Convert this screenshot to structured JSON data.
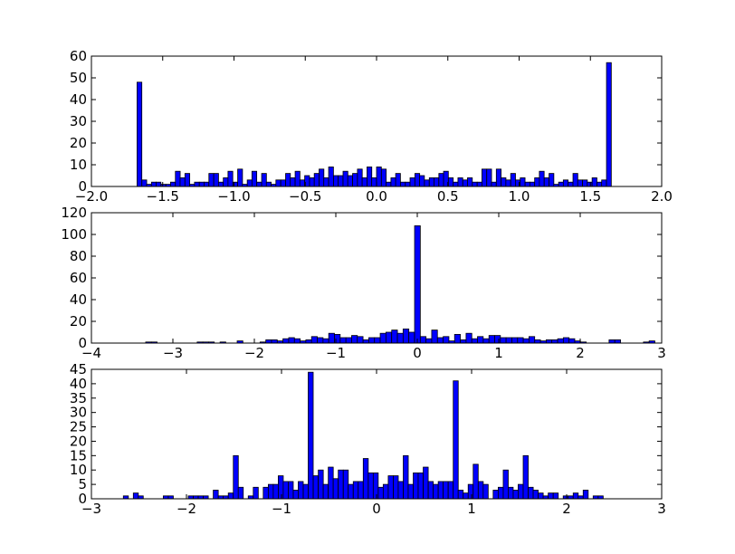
{
  "chart_data": [
    {
      "type": "bar",
      "title": "",
      "xlabel": "",
      "ylabel": "",
      "xlim": [
        -2.0,
        2.0
      ],
      "ylim": [
        0,
        60
      ],
      "grid": false,
      "bar_color": "#0000ff",
      "edge_color": "#000000",
      "bin_width": 0.0336,
      "xticks": [
        -2.0,
        -1.5,
        -1.0,
        -0.5,
        0.0,
        0.5,
        1.0,
        1.5,
        2.0
      ],
      "xtick_labels": [
        "−2.0",
        "−1.5",
        "−1.0",
        "−0.5",
        "0.0",
        "0.5",
        "1.0",
        "1.5",
        "2.0"
      ],
      "yticks": [
        0,
        10,
        20,
        30,
        40,
        50,
        60
      ],
      "ytick_labels": [
        "0",
        "10",
        "20",
        "30",
        "40",
        "50",
        "60"
      ],
      "x": [
        -1.68,
        -1.646,
        -1.613,
        -1.579,
        -1.546,
        -1.512,
        -1.478,
        -1.445,
        -1.411,
        -1.378,
        -1.344,
        -1.31,
        -1.277,
        -1.243,
        -1.21,
        -1.176,
        -1.142,
        -1.109,
        -1.075,
        -1.042,
        -1.008,
        -0.974,
        -0.941,
        -0.907,
        -0.874,
        -0.84,
        -0.806,
        -0.773,
        -0.739,
        -0.706,
        -0.672,
        -0.638,
        -0.605,
        -0.571,
        -0.538,
        -0.504,
        -0.47,
        -0.437,
        -0.403,
        -0.37,
        -0.336,
        -0.302,
        -0.269,
        -0.235,
        -0.202,
        -0.168,
        -0.134,
        -0.101,
        -0.067,
        -0.034,
        0.0,
        0.034,
        0.067,
        0.101,
        0.134,
        0.168,
        0.202,
        0.235,
        0.269,
        0.302,
        0.336,
        0.37,
        0.403,
        0.437,
        0.47,
        0.504,
        0.538,
        0.571,
        0.605,
        0.638,
        0.672,
        0.706,
        0.739,
        0.773,
        0.806,
        0.84,
        0.874,
        0.907,
        0.941,
        0.974,
        1.008,
        1.042,
        1.075,
        1.109,
        1.142,
        1.176,
        1.21,
        1.243,
        1.277,
        1.31,
        1.344,
        1.378,
        1.411,
        1.445,
        1.478,
        1.512,
        1.546,
        1.579,
        1.613,
        1.646
      ],
      "values": [
        48,
        3,
        1,
        2,
        2,
        1,
        1,
        2,
        7,
        4,
        6,
        1,
        2,
        2,
        2,
        6,
        6,
        2,
        4,
        7,
        2,
        8,
        1,
        3,
        7,
        2,
        6,
        2,
        1,
        3,
        3,
        6,
        4,
        7,
        3,
        5,
        4,
        6,
        8,
        4,
        9,
        5,
        5,
        7,
        5,
        6,
        8,
        4,
        9,
        4,
        9,
        8,
        2,
        4,
        6,
        2,
        2,
        4,
        6,
        5,
        3,
        4,
        4,
        6,
        7,
        4,
        2,
        4,
        3,
        4,
        2,
        2,
        8,
        8,
        2,
        8,
        4,
        3,
        6,
        3,
        4,
        2,
        2,
        4,
        7,
        4,
        6,
        1,
        2,
        3,
        2,
        6,
        3,
        3,
        2,
        4,
        2,
        3,
        57,
        0
      ]
    },
    {
      "type": "bar",
      "title": "",
      "xlabel": "",
      "ylabel": "",
      "xlim": [
        -4,
        3
      ],
      "ylim": [
        0,
        120
      ],
      "grid": false,
      "bar_color": "#0000ff",
      "edge_color": "#000000",
      "bin_width": 0.0702,
      "xticks": [
        -4,
        -3,
        -2,
        -1,
        0,
        1,
        2,
        3
      ],
      "xtick_labels": [
        "−4",
        "−3",
        "−2",
        "−1",
        "0",
        "1",
        "2",
        "3"
      ],
      "yticks": [
        0,
        20,
        40,
        60,
        80,
        100,
        120
      ],
      "ytick_labels": [
        "0",
        "20",
        "40",
        "60",
        "80",
        "100",
        "120"
      ],
      "x": [
        -3.334,
        -3.264,
        -2.702,
        -2.632,
        -2.562,
        -2.421,
        -2.211,
        -1.93,
        -1.859,
        -1.789,
        -1.719,
        -1.649,
        -1.578,
        -1.508,
        -1.438,
        -1.368,
        -1.298,
        -1.227,
        -1.157,
        -1.087,
        -1.017,
        -0.946,
        -0.876,
        -0.806,
        -0.736,
        -0.665,
        -0.595,
        -0.525,
        -0.455,
        -0.385,
        -0.314,
        -0.244,
        -0.174,
        -0.104,
        -0.033,
        0.037,
        0.107,
        0.177,
        0.248,
        0.318,
        0.388,
        0.458,
        0.529,
        0.599,
        0.669,
        0.739,
        0.81,
        0.88,
        0.95,
        1.02,
        1.09,
        1.161,
        1.231,
        1.301,
        1.371,
        1.442,
        1.512,
        1.582,
        1.652,
        1.723,
        1.793,
        1.863,
        1.933,
        2.004,
        2.354,
        2.425,
        2.776,
        2.846
      ],
      "values": [
        1,
        1,
        1,
        1,
        1,
        1,
        2,
        1,
        3,
        3,
        2,
        4,
        5,
        4,
        2,
        3,
        6,
        5,
        4,
        9,
        8,
        5,
        5,
        7,
        6,
        3,
        5,
        5,
        9,
        10,
        12,
        9,
        13,
        10,
        108,
        6,
        4,
        12,
        5,
        6,
        2,
        8,
        3,
        9,
        4,
        6,
        4,
        7,
        7,
        5,
        5,
        5,
        5,
        4,
        6,
        3,
        2,
        3,
        3,
        4,
        5,
        4,
        2,
        1,
        3,
        3,
        1,
        2
      ]
    },
    {
      "type": "bar",
      "title": "",
      "xlabel": "",
      "ylabel": "",
      "xlim": [
        -3,
        3
      ],
      "ylim": [
        0,
        45
      ],
      "grid": false,
      "bar_color": "#0000ff",
      "edge_color": "#000000",
      "bin_width": 0.0526,
      "xticks": [
        -3,
        -2,
        -1,
        0,
        1,
        2,
        3
      ],
      "xtick_labels": [
        "−3",
        "−2",
        "−1",
        "0",
        "1",
        "2",
        "3"
      ],
      "yticks": [
        0,
        5,
        10,
        15,
        20,
        25,
        30,
        35,
        40,
        45
      ],
      "ytick_labels": [
        "0",
        "5",
        "10",
        "15",
        "20",
        "25",
        "30",
        "35",
        "40",
        "45"
      ],
      "x": [
        -2.664,
        -2.559,
        -2.507,
        -2.244,
        -2.191,
        -1.981,
        -1.928,
        -1.876,
        -1.823,
        -1.718,
        -1.665,
        -1.613,
        -1.56,
        -1.507,
        -1.455,
        -1.35,
        -1.297,
        -1.192,
        -1.139,
        -1.087,
        -1.034,
        -0.982,
        -0.929,
        -0.876,
        -0.824,
        -0.771,
        -0.719,
        -0.666,
        -0.613,
        -0.561,
        -0.508,
        -0.456,
        -0.403,
        -0.35,
        -0.298,
        -0.245,
        -0.193,
        -0.14,
        -0.087,
        -0.035,
        0.018,
        0.07,
        0.123,
        0.176,
        0.228,
        0.281,
        0.333,
        0.386,
        0.438,
        0.491,
        0.544,
        0.596,
        0.649,
        0.701,
        0.754,
        0.807,
        0.859,
        0.912,
        0.964,
        1.017,
        1.07,
        1.122,
        1.227,
        1.28,
        1.333,
        1.385,
        1.438,
        1.49,
        1.543,
        1.596,
        1.648,
        1.701,
        1.753,
        1.806,
        1.859,
        1.964,
        2.016,
        2.069,
        2.121,
        2.174,
        2.279,
        2.332
      ],
      "values": [
        1,
        2,
        1,
        1,
        1,
        1,
        1,
        1,
        1,
        3,
        1,
        1,
        2,
        15,
        4,
        1,
        4,
        4,
        5,
        5,
        8,
        6,
        6,
        3,
        6,
        5,
        44,
        8,
        10,
        5,
        11,
        7,
        10,
        10,
        5,
        6,
        6,
        14,
        9,
        9,
        4,
        5,
        8,
        8,
        6,
        15,
        5,
        9,
        9,
        11,
        6,
        5,
        6,
        6,
        6,
        41,
        3,
        2,
        5,
        12,
        6,
        5,
        3,
        4,
        10,
        4,
        3,
        5,
        15,
        4,
        3,
        2,
        1,
        2,
        2,
        1,
        1,
        2,
        1,
        3,
        1,
        1
      ]
    }
  ]
}
